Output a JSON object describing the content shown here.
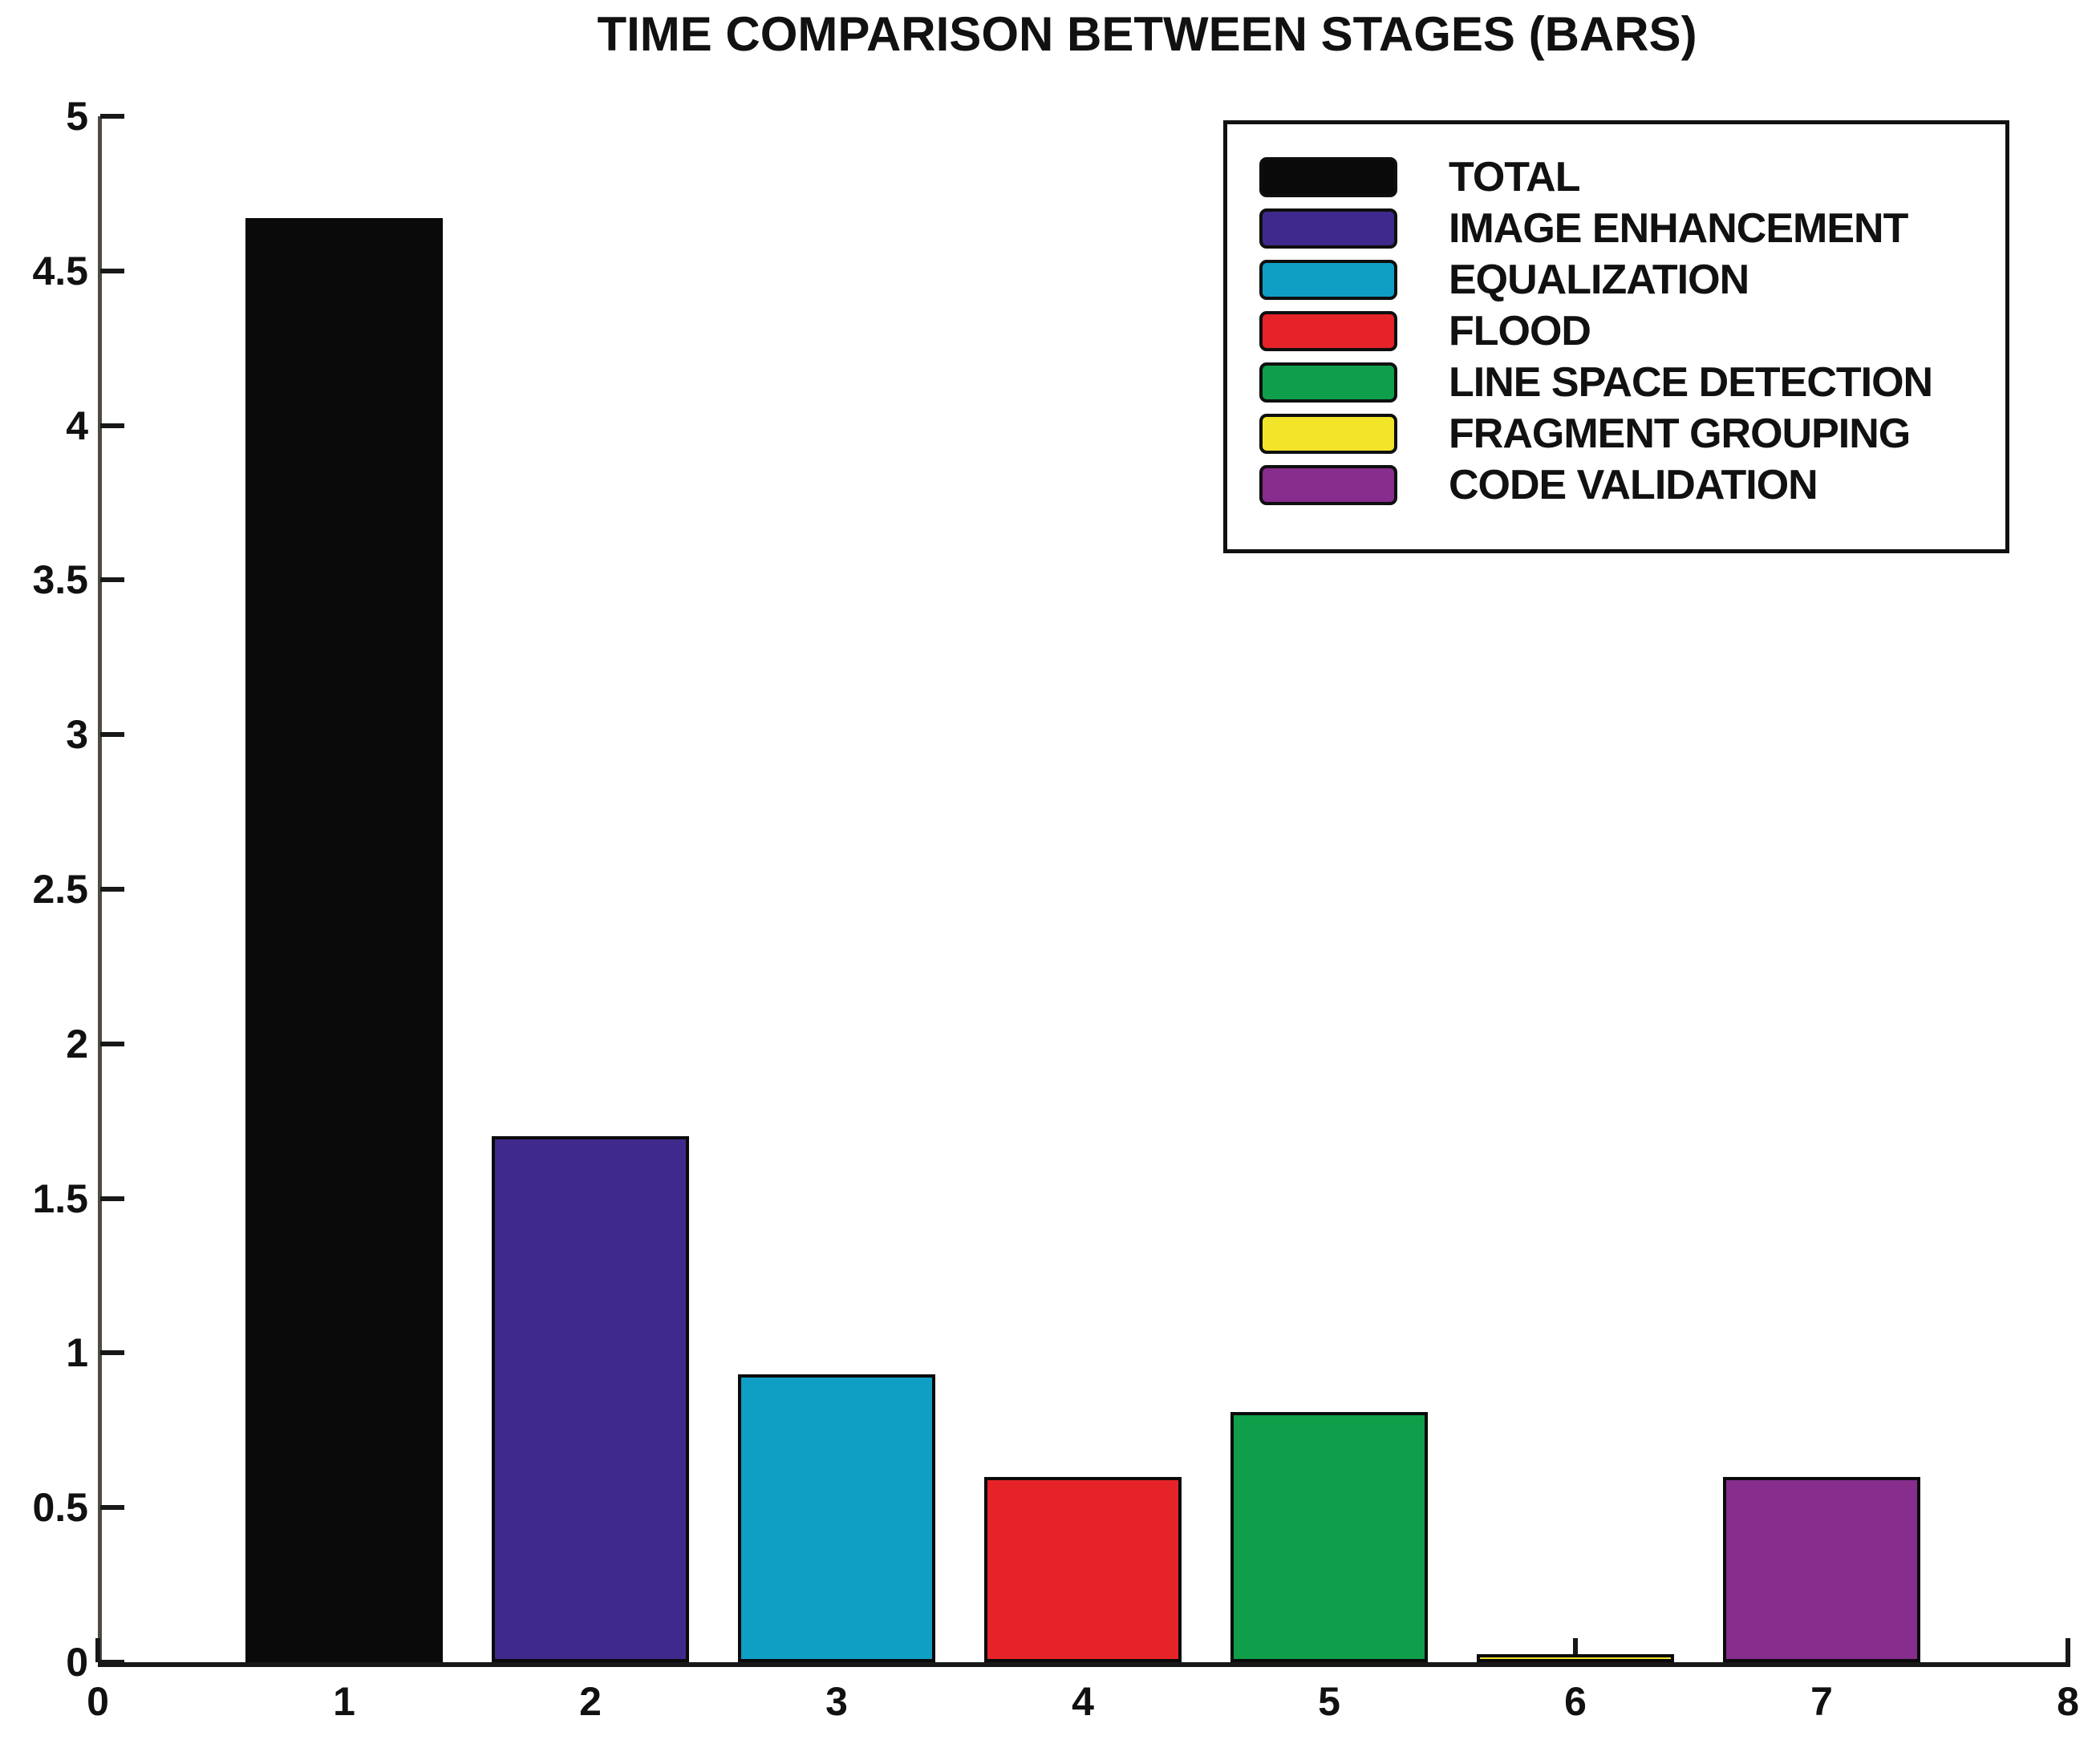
{
  "chart_data": {
    "type": "bar",
    "title": "TIME COMPARISON BETWEEN STAGES (BARS)",
    "xlabel": "",
    "ylabel": "",
    "xlim": [
      0,
      8
    ],
    "ylim": [
      0,
      5
    ],
    "grid": false,
    "legend_position": "top-right",
    "x_tick_labels": [
      "0",
      "1",
      "2",
      "3",
      "4",
      "5",
      "6",
      "7",
      "8"
    ],
    "y_tick_labels": [
      "0",
      "0.5",
      "1",
      "1.5",
      "2",
      "2.5",
      "3",
      "3.5",
      "4",
      "4.5",
      "5"
    ],
    "bar_width_units": 0.8,
    "bars": [
      {
        "x": 1,
        "label": "TOTAL",
        "value": 4.67,
        "color": "#0a0a0a"
      },
      {
        "x": 2,
        "label": "IMAGE ENHANCEMENT",
        "value": 1.7,
        "color": "#40298c"
      },
      {
        "x": 3,
        "label": "EQUALIZATION",
        "value": 0.93,
        "color": "#0f9fc5"
      },
      {
        "x": 4,
        "label": "FLOOD",
        "value": 0.6,
        "color": "#e62328"
      },
      {
        "x": 5,
        "label": "LINE SPACE DETECTION",
        "value": 0.81,
        "color": "#0f9e49"
      },
      {
        "x": 6,
        "label": "FRAGMENT GROUPING",
        "value": 0.02,
        "color": "#f2e428"
      },
      {
        "x": 7,
        "label": "CODE VALIDATION",
        "value": 0.6,
        "color": "#862d8e"
      }
    ],
    "colors": {
      "axis_y": "#4f4a46",
      "axis_x": "#181818",
      "text": "#111111",
      "background": "#ffffff"
    }
  }
}
